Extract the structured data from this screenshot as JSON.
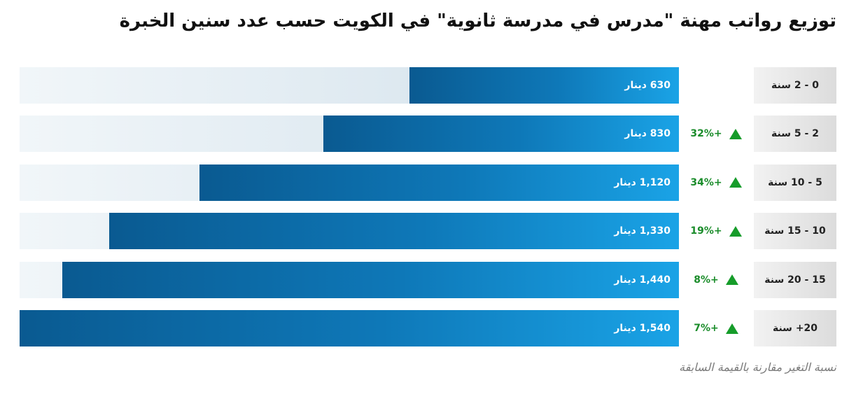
{
  "chart_data": {
    "type": "bar",
    "orientation": "horizontal",
    "title": "توزيع رواتب مهنة \"مدرس في مدرسة ثانوية\" في الكويت حسب عدد سنين الخبرة",
    "categories": [
      "0 - 2 سنة",
      "2 - 5 سنة",
      "5 - 10 سنة",
      "10 - 15 سنة",
      "15 - 20 سنة",
      "20+ سنة"
    ],
    "values": [
      630,
      830,
      1120,
      1330,
      1440,
      1540
    ],
    "value_labels": [
      "630 دينار",
      "830 دينار",
      "1,120 دينار",
      "1,330 دينار",
      "1,440 دينار",
      "1,540 دينار"
    ],
    "changes": [
      "",
      "32%+",
      "34%+",
      "19%+",
      "8%+",
      "7%+"
    ],
    "footnote": "نسبة التغير مقارنة بالقيمة السابقة",
    "xlim": [
      0,
      1540
    ],
    "grid": false,
    "colors": {
      "bar": "#0e78b8",
      "increase": "#169c2a"
    },
    "icons": {
      "increase": "triangle-up-icon"
    }
  }
}
